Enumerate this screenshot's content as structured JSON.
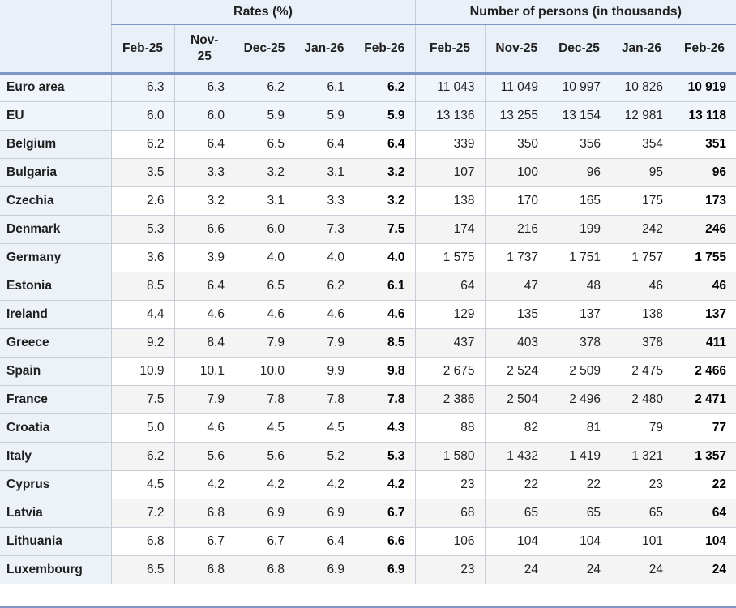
{
  "chart_data": {
    "type": "table",
    "title": "",
    "column_groups": [
      {
        "label": "Rates (%)"
      },
      {
        "label": "Number of persons (in thousands)"
      }
    ],
    "columns": [
      "Feb-25",
      "Nov-25",
      "Dec-25",
      "Jan-26",
      "Feb-26"
    ],
    "corner_label": "",
    "rows": [
      {
        "name": "Euro area",
        "aggregate": true,
        "rates": [
          "6.3",
          "6.3",
          "6.2",
          "6.1",
          "6.2"
        ],
        "persons": [
          "11 043",
          "11 049",
          "10 997",
          "10 826",
          "10 919"
        ]
      },
      {
        "name": "EU",
        "aggregate": true,
        "rates": [
          "6.0",
          "6.0",
          "5.9",
          "5.9",
          "5.9"
        ],
        "persons": [
          "13 136",
          "13 255",
          "13 154",
          "12 981",
          "13 118"
        ]
      },
      {
        "name": "Belgium",
        "aggregate": false,
        "rates": [
          "6.2",
          "6.4",
          "6.5",
          "6.4",
          "6.4"
        ],
        "persons": [
          "339",
          "350",
          "356",
          "354",
          "351"
        ]
      },
      {
        "name": "Bulgaria",
        "aggregate": false,
        "rates": [
          "3.5",
          "3.3",
          "3.2",
          "3.1",
          "3.2"
        ],
        "persons": [
          "107",
          "100",
          "96",
          "95",
          "96"
        ]
      },
      {
        "name": "Czechia",
        "aggregate": false,
        "rates": [
          "2.6",
          "3.2",
          "3.1",
          "3.3",
          "3.2"
        ],
        "persons": [
          "138",
          "170",
          "165",
          "175",
          "173"
        ]
      },
      {
        "name": "Denmark",
        "aggregate": false,
        "rates": [
          "5.3",
          "6.6",
          "6.0",
          "7.3",
          "7.5"
        ],
        "persons": [
          "174",
          "216",
          "199",
          "242",
          "246"
        ]
      },
      {
        "name": "Germany",
        "aggregate": false,
        "rates": [
          "3.6",
          "3.9",
          "4.0",
          "4.0",
          "4.0"
        ],
        "persons": [
          "1 575",
          "1 737",
          "1 751",
          "1 757",
          "1 755"
        ]
      },
      {
        "name": "Estonia",
        "aggregate": false,
        "rates": [
          "8.5",
          "6.4",
          "6.5",
          "6.2",
          "6.1"
        ],
        "persons": [
          "64",
          "47",
          "48",
          "46",
          "46"
        ]
      },
      {
        "name": "Ireland",
        "aggregate": false,
        "rates": [
          "4.4",
          "4.6",
          "4.6",
          "4.6",
          "4.6"
        ],
        "persons": [
          "129",
          "135",
          "137",
          "138",
          "137"
        ]
      },
      {
        "name": "Greece",
        "aggregate": false,
        "rates": [
          "9.2",
          "8.4",
          "7.9",
          "7.9",
          "8.5"
        ],
        "persons": [
          "437",
          "403",
          "378",
          "378",
          "411"
        ]
      },
      {
        "name": "Spain",
        "aggregate": false,
        "rates": [
          "10.9",
          "10.1",
          "10.0",
          "9.9",
          "9.8"
        ],
        "persons": [
          "2 675",
          "2 524",
          "2 509",
          "2 475",
          "2 466"
        ]
      },
      {
        "name": "France",
        "aggregate": false,
        "rates": [
          "7.5",
          "7.9",
          "7.8",
          "7.8",
          "7.8"
        ],
        "persons": [
          "2 386",
          "2 504",
          "2 496",
          "2 480",
          "2 471"
        ]
      },
      {
        "name": "Croatia",
        "aggregate": false,
        "rates": [
          "5.0",
          "4.6",
          "4.5",
          "4.5",
          "4.3"
        ],
        "persons": [
          "88",
          "82",
          "81",
          "79",
          "77"
        ]
      },
      {
        "name": "Italy",
        "aggregate": false,
        "rates": [
          "6.2",
          "5.6",
          "5.6",
          "5.2",
          "5.3"
        ],
        "persons": [
          "1 580",
          "1 432",
          "1 419",
          "1 321",
          "1 357"
        ]
      },
      {
        "name": "Cyprus",
        "aggregate": false,
        "rates": [
          "4.5",
          "4.2",
          "4.2",
          "4.2",
          "4.2"
        ],
        "persons": [
          "23",
          "22",
          "22",
          "23",
          "22"
        ]
      },
      {
        "name": "Latvia",
        "aggregate": false,
        "rates": [
          "7.2",
          "6.8",
          "6.9",
          "6.9",
          "6.7"
        ],
        "persons": [
          "68",
          "65",
          "65",
          "65",
          "64"
        ]
      },
      {
        "name": "Lithuania",
        "aggregate": false,
        "rates": [
          "6.8",
          "6.7",
          "6.7",
          "6.4",
          "6.6"
        ],
        "persons": [
          "106",
          "104",
          "104",
          "101",
          "104"
        ]
      },
      {
        "name": "Luxembourg",
        "aggregate": false,
        "rates": [
          "6.5",
          "6.8",
          "6.8",
          "6.9",
          "6.9"
        ],
        "persons": [
          "23",
          "24",
          "24",
          "24",
          "24"
        ]
      }
    ]
  },
  "colors": {
    "header_bg": "#eaf0f8",
    "aggregate_row_bg": "#f0f4fb",
    "country_col_bg": "#edf1f8",
    "stripe_bg": "#f4f4f4",
    "accent_line": "#7e95c6",
    "grid_line": "#c8cdd7",
    "text": "#1f1f1f"
  }
}
